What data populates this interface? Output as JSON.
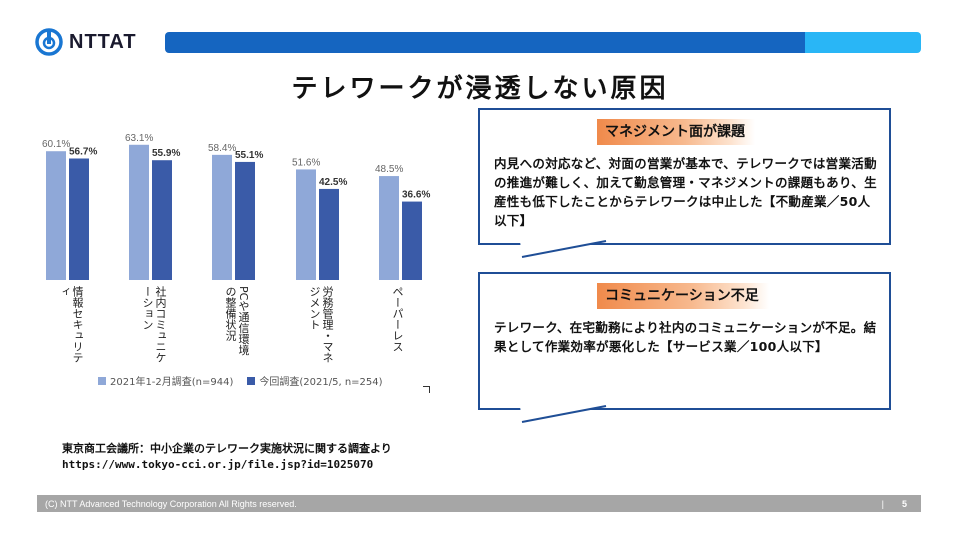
{
  "header": {
    "logo_text": "NTTAT",
    "title": "テレワークが浸透しない原因"
  },
  "colors": {
    "bar_dark": "#1565c0",
    "bar_light": "#29b6f6",
    "series_2021_jan": "#8fa8d8",
    "series_2021_may": "#3a5ba8",
    "callout_border": "#1f4e96"
  },
  "chart_data": {
    "type": "bar",
    "categories": [
      "情報セキュリティ",
      "社内コミュニケーション",
      "PCや通信環境の整備状況",
      "労務管理・マネジメント",
      "ペーパーレス"
    ],
    "series": [
      {
        "name": "2021年1-2月調査(n=944)",
        "values": [
          60.1,
          63.1,
          58.4,
          51.6,
          48.5
        ],
        "labels": [
          "60.1%",
          "63.1%",
          "58.4%",
          "51.6%",
          "48.5%"
        ]
      },
      {
        "name": "今回調査(2021/5, n=254)",
        "values": [
          56.7,
          55.9,
          55.1,
          42.5,
          36.6
        ],
        "labels": [
          "56.7%",
          "55.9%",
          "55.1%",
          "42.5%",
          "36.6%"
        ]
      }
    ],
    "ylim": [
      0,
      70
    ],
    "legend": "bottom"
  },
  "callouts": [
    {
      "title": "マネジメント面が課題",
      "text": "内見への対応など、対面の営業が基本で、テレワークでは営業活動の推進が難しく、加えて勤怠管理・マネジメントの課題もあり、生産性も低下したことからテレワークは中止した【不動産業／50人以下】"
    },
    {
      "title": "コミュニケーション不足",
      "text": "テレワーク、在宅勤務により社内のコミュニケーションが不足。結果として作業効率が悪化した【サービス業／100人以下】"
    }
  ],
  "source": {
    "line1": "東京商工会議所：中小企業のテレワーク実施状況に関する調査より",
    "line2": "https://www.tokyo-cci.or.jp/file.jsp?id=1025070"
  },
  "footer": {
    "copyright": "(C) NTT Advanced Technology Corporation All Rights reserved.",
    "separator": "|",
    "page_number": "5"
  }
}
